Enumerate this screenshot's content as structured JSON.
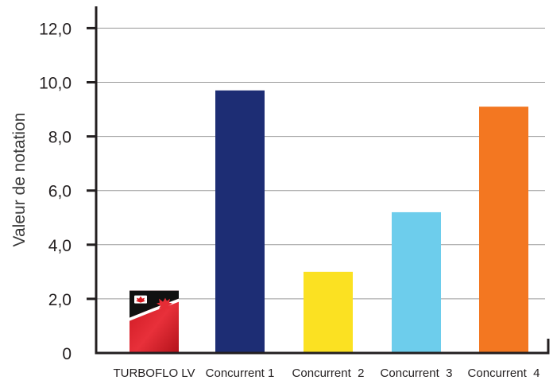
{
  "chart_data": {
    "type": "bar",
    "title": "",
    "xlabel": "",
    "ylabel": "Valeur de notation",
    "categories": [
      "TURBOFLO LV",
      "Concurrent 1",
      "Concurrent  2",
      "Concurrent  3",
      "Concurrent  4"
    ],
    "values": [
      2.3,
      9.7,
      3.0,
      5.2,
      9.1
    ],
    "bar_colors": [
      "#e52d36",
      "#1d2d74",
      "#fbe122",
      "#6dcdec",
      "#f37721"
    ],
    "ylim": [
      0,
      12.5
    ],
    "yticks": [
      0,
      2,
      4,
      6,
      8,
      10,
      12
    ],
    "ytick_labels": [
      "0",
      "2,0",
      "4,0",
      "6,0",
      "8,0",
      "10,0",
      "12,0"
    ],
    "grid": true,
    "legend": "none",
    "first_bar_image": "turboflo-product-package"
  }
}
